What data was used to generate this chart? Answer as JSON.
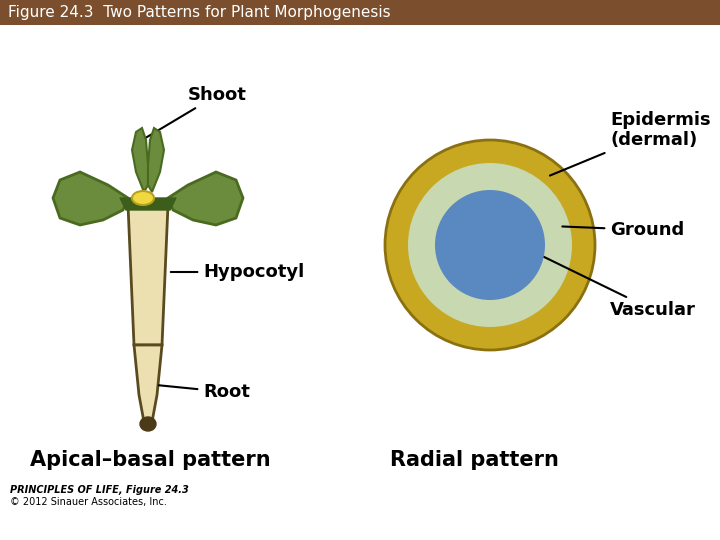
{
  "title": "Figure 24.3  Two Patterns for Plant Morphogenesis",
  "title_bg_color": "#7B4F2E",
  "title_text_color": "#FFFFFF",
  "bg_color": "#FFFFFF",
  "left_label": "Apical–basal pattern",
  "right_label": "Radial pattern",
  "shoot_label": "Shoot",
  "hypocotyl_label": "Hypocotyl",
  "root_label": "Root",
  "epidermis_label": "Epidermis\n(dermal)",
  "ground_label": "Ground",
  "vascular_label": "Vascular",
  "copyright_line1": "PRINCIPLES OF LIFE, Figure 24.3",
  "copyright_line2": "© 2012 Sinauer Associates, Inc.",
  "leaf_color": "#6A8C3C",
  "leaf_outline": "#4A6A20",
  "leaf_dark": "#3D5E1A",
  "stem_color": "#EDE0B0",
  "stem_outline": "#5A4A20",
  "root_color": "#EDE0B0",
  "root_tip_color": "#4A3A18",
  "meristem_color": "#F0D840",
  "meristem_outline": "#B8A020",
  "epidermis_color": "#C8A820",
  "epidermis_outline": "#8A7010",
  "ground_color": "#C8D8B0",
  "ground_outline": "#8AAA70",
  "vascular_color": "#5A88C0",
  "vascular_outline": "#3A68A0",
  "title_fontsize": 11,
  "label_fontsize": 13,
  "pattern_fontsize": 15,
  "copyright_fontsize": 7
}
